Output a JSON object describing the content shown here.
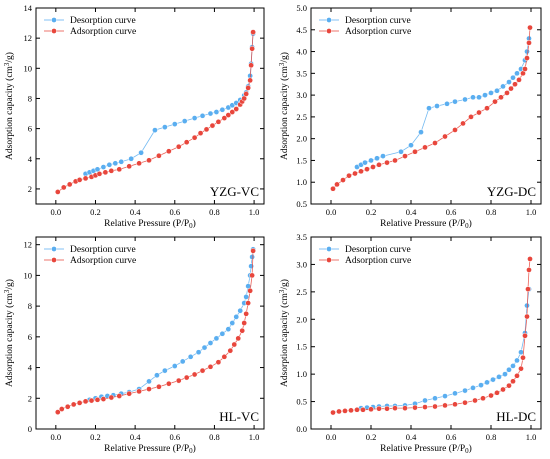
{
  "chart_data": [
    {
      "type": "scatter",
      "panel_label": "YZG-VC",
      "xlabel": "Relative Pressure (P/P",
      "xlabel_sub": "0",
      "xlabel_tail": ")",
      "ylabel": "Adsorption capacity (cm",
      "ylabel_sup": "3",
      "ylabel_tail": "/g)",
      "xlim": [
        -0.1,
        1.05
      ],
      "ylim": [
        1,
        14
      ],
      "xticks": [
        "0.0",
        "0.2",
        "0.4",
        "0.6",
        "0.8",
        "1.0"
      ],
      "xtick_values": [
        0.0,
        0.2,
        0.4,
        0.6,
        0.8,
        1.0
      ],
      "yticks": [
        "2",
        "4",
        "6",
        "8",
        "10",
        "12",
        "14"
      ],
      "ytick_values": [
        2,
        4,
        6,
        8,
        10,
        12,
        14
      ],
      "legend_position": "top-left",
      "series": [
        {
          "name": "Desorption curve",
          "color": "#5aaef0",
          "x": [
            0.15,
            0.17,
            0.19,
            0.21,
            0.24,
            0.27,
            0.3,
            0.33,
            0.38,
            0.43,
            0.5,
            0.55,
            0.6,
            0.65,
            0.7,
            0.74,
            0.78,
            0.81,
            0.84,
            0.87,
            0.89,
            0.91,
            0.93,
            0.95,
            0.96,
            0.97,
            0.98,
            0.985,
            0.99,
            0.995
          ],
          "y": [
            3.0,
            3.1,
            3.2,
            3.3,
            3.45,
            3.6,
            3.7,
            3.8,
            4.0,
            4.4,
            5.9,
            6.1,
            6.3,
            6.5,
            6.7,
            6.85,
            7.0,
            7.1,
            7.25,
            7.4,
            7.55,
            7.7,
            7.9,
            8.2,
            8.4,
            8.8,
            9.5,
            10.3,
            11.4,
            12.3
          ]
        },
        {
          "name": "Adsorption curve",
          "color": "#e8463c",
          "x": [
            0.01,
            0.04,
            0.07,
            0.1,
            0.12,
            0.15,
            0.18,
            0.2,
            0.22,
            0.25,
            0.28,
            0.32,
            0.37,
            0.42,
            0.47,
            0.52,
            0.57,
            0.62,
            0.66,
            0.7,
            0.73,
            0.76,
            0.79,
            0.82,
            0.85,
            0.87,
            0.89,
            0.91,
            0.93,
            0.94,
            0.95,
            0.96,
            0.97,
            0.98,
            0.985,
            0.99,
            0.995
          ],
          "y": [
            1.8,
            2.1,
            2.3,
            2.5,
            2.6,
            2.7,
            2.8,
            2.9,
            3.0,
            3.1,
            3.2,
            3.3,
            3.5,
            3.7,
            3.9,
            4.2,
            4.5,
            4.8,
            5.1,
            5.4,
            5.7,
            5.95,
            6.2,
            6.45,
            6.7,
            6.9,
            7.1,
            7.3,
            7.6,
            7.8,
            8.0,
            8.3,
            8.7,
            9.2,
            10.2,
            11.3,
            12.4
          ]
        }
      ]
    },
    {
      "type": "scatter",
      "panel_label": "YZG-DC",
      "xlabel": "Relative Pressure (P/P",
      "xlabel_sub": "0",
      "xlabel_tail": ")",
      "ylabel": "Adsorption capacity (cm",
      "ylabel_sup": "3",
      "ylabel_tail": "/g)",
      "xlim": [
        -0.1,
        1.05
      ],
      "ylim": [
        0.5,
        5.0
      ],
      "xticks": [
        "0.0",
        "0.2",
        "0.4",
        "0.6",
        "0.8",
        "1.0"
      ],
      "xtick_values": [
        0.0,
        0.2,
        0.4,
        0.6,
        0.8,
        1.0
      ],
      "yticks": [
        "0.5",
        "1.0",
        "1.5",
        "2.0",
        "2.5",
        "3.0",
        "3.5",
        "4.0",
        "4.5",
        "5.0"
      ],
      "ytick_values": [
        0.5,
        1.0,
        1.5,
        2.0,
        2.5,
        3.0,
        3.5,
        4.0,
        4.5,
        5.0
      ],
      "legend_position": "top-left",
      "series": [
        {
          "name": "Desorption curve",
          "color": "#5aaef0",
          "x": [
            0.13,
            0.15,
            0.17,
            0.2,
            0.23,
            0.26,
            0.35,
            0.4,
            0.45,
            0.49,
            0.53,
            0.58,
            0.62,
            0.67,
            0.71,
            0.74,
            0.77,
            0.8,
            0.83,
            0.86,
            0.89,
            0.91,
            0.93,
            0.95,
            0.97,
            0.98,
            0.99
          ],
          "y": [
            1.35,
            1.4,
            1.45,
            1.5,
            1.55,
            1.6,
            1.7,
            1.85,
            2.15,
            2.7,
            2.75,
            2.8,
            2.85,
            2.9,
            2.95,
            2.95,
            3.0,
            3.05,
            3.1,
            3.2,
            3.3,
            3.4,
            3.5,
            3.6,
            3.8,
            4.0,
            4.3
          ]
        },
        {
          "name": "Adsorption curve",
          "color": "#e8463c",
          "x": [
            0.01,
            0.03,
            0.06,
            0.09,
            0.12,
            0.15,
            0.18,
            0.21,
            0.24,
            0.28,
            0.32,
            0.37,
            0.42,
            0.47,
            0.52,
            0.57,
            0.62,
            0.66,
            0.7,
            0.74,
            0.78,
            0.82,
            0.85,
            0.88,
            0.9,
            0.92,
            0.94,
            0.96,
            0.97,
            0.98,
            0.99,
            0.995
          ],
          "y": [
            0.85,
            0.95,
            1.05,
            1.15,
            1.2,
            1.25,
            1.3,
            1.35,
            1.4,
            1.45,
            1.5,
            1.6,
            1.7,
            1.8,
            1.9,
            2.05,
            2.2,
            2.35,
            2.5,
            2.6,
            2.7,
            2.85,
            2.95,
            3.05,
            3.15,
            3.25,
            3.35,
            3.5,
            3.6,
            3.85,
            4.2,
            4.55
          ]
        }
      ]
    },
    {
      "type": "scatter",
      "panel_label": "HL-VC",
      "xlabel": "Relative Pressure (P/P",
      "xlabel_sub": "0",
      "xlabel_tail": ")",
      "ylabel": "Adsorption capacity (cm",
      "ylabel_sup": "3",
      "ylabel_tail": "/g)",
      "xlim": [
        -0.1,
        1.05
      ],
      "ylim": [
        0,
        12.5
      ],
      "xticks": [
        "0.0",
        "0.2",
        "0.4",
        "0.6",
        "0.8",
        "1.0"
      ],
      "xtick_values": [
        0.0,
        0.2,
        0.4,
        0.6,
        0.8,
        1.0
      ],
      "yticks": [
        "0",
        "2",
        "4",
        "6",
        "8",
        "10",
        "12"
      ],
      "ytick_values": [
        0,
        2,
        4,
        6,
        8,
        10,
        12
      ],
      "legend_position": "top-left",
      "series": [
        {
          "name": "Desorption curve",
          "color": "#5aaef0",
          "x": [
            0.17,
            0.2,
            0.23,
            0.26,
            0.29,
            0.33,
            0.37,
            0.42,
            0.47,
            0.51,
            0.55,
            0.6,
            0.64,
            0.68,
            0.72,
            0.75,
            0.78,
            0.81,
            0.84,
            0.87,
            0.89,
            0.91,
            0.93,
            0.95,
            0.96,
            0.97,
            0.98,
            0.985,
            0.99,
            0.995
          ],
          "y": [
            1.9,
            2.0,
            2.1,
            2.15,
            2.2,
            2.3,
            2.4,
            2.6,
            3.1,
            3.5,
            3.8,
            4.1,
            4.4,
            4.7,
            5.0,
            5.3,
            5.6,
            5.9,
            6.2,
            6.5,
            6.9,
            7.3,
            7.7,
            8.2,
            8.6,
            9.3,
            10.0,
            10.6,
            11.2,
            11.7
          ]
        },
        {
          "name": "Adsorption curve",
          "color": "#e8463c",
          "x": [
            0.01,
            0.03,
            0.06,
            0.09,
            0.12,
            0.15,
            0.18,
            0.21,
            0.24,
            0.28,
            0.32,
            0.37,
            0.42,
            0.47,
            0.52,
            0.57,
            0.62,
            0.66,
            0.7,
            0.74,
            0.78,
            0.82,
            0.85,
            0.88,
            0.9,
            0.92,
            0.94,
            0.95,
            0.96,
            0.97,
            0.98,
            0.99,
            0.995
          ],
          "y": [
            1.1,
            1.3,
            1.45,
            1.6,
            1.7,
            1.8,
            1.85,
            1.9,
            1.95,
            2.05,
            2.15,
            2.3,
            2.45,
            2.6,
            2.75,
            2.95,
            3.15,
            3.35,
            3.55,
            3.8,
            4.05,
            4.35,
            4.7,
            5.1,
            5.5,
            5.9,
            6.4,
            6.9,
            7.5,
            8.2,
            9.0,
            10.0,
            11.6
          ]
        }
      ]
    },
    {
      "type": "scatter",
      "panel_label": "HL-DC",
      "xlabel": "Relative Pressure (P/P",
      "xlabel_sub": "0",
      "xlabel_tail": ")",
      "ylabel": "Adsorption capacity (cm",
      "ylabel_sup": "3",
      "ylabel_tail": "/g)",
      "xlim": [
        -0.1,
        1.05
      ],
      "ylim": [
        0.0,
        3.5
      ],
      "xticks": [
        "0.0",
        "0.2",
        "0.4",
        "0.6",
        "0.8",
        "1.0"
      ],
      "xtick_values": [
        0.0,
        0.2,
        0.4,
        0.6,
        0.8,
        1.0
      ],
      "yticks": [
        "0.0",
        "0.5",
        "1.0",
        "1.5",
        "2.0",
        "2.5",
        "3.0",
        "3.5"
      ],
      "ytick_values": [
        0.0,
        0.5,
        1.0,
        1.5,
        2.0,
        2.5,
        3.0,
        3.5
      ],
      "legend_position": "top-left",
      "series": [
        {
          "name": "Desorption curve",
          "color": "#5aaef0",
          "x": [
            0.15,
            0.18,
            0.21,
            0.24,
            0.28,
            0.32,
            0.37,
            0.42,
            0.47,
            0.52,
            0.57,
            0.62,
            0.67,
            0.71,
            0.75,
            0.78,
            0.81,
            0.84,
            0.87,
            0.89,
            0.91,
            0.93,
            0.95,
            0.97,
            0.98,
            0.99
          ],
          "y": [
            0.38,
            0.39,
            0.4,
            0.41,
            0.42,
            0.42,
            0.43,
            0.46,
            0.52,
            0.56,
            0.6,
            0.65,
            0.7,
            0.75,
            0.8,
            0.85,
            0.9,
            0.95,
            1.0,
            1.08,
            1.15,
            1.25,
            1.4,
            1.75,
            2.25,
            2.55
          ]
        },
        {
          "name": "Adsorption curve",
          "color": "#e8463c",
          "x": [
            0.01,
            0.04,
            0.07,
            0.1,
            0.13,
            0.16,
            0.2,
            0.24,
            0.28,
            0.32,
            0.37,
            0.42,
            0.47,
            0.52,
            0.57,
            0.62,
            0.67,
            0.72,
            0.76,
            0.8,
            0.83,
            0.86,
            0.89,
            0.91,
            0.93,
            0.95,
            0.96,
            0.97,
            0.98,
            0.985,
            0.99,
            0.995
          ],
          "y": [
            0.3,
            0.32,
            0.33,
            0.34,
            0.35,
            0.35,
            0.36,
            0.37,
            0.37,
            0.38,
            0.38,
            0.39,
            0.4,
            0.41,
            0.43,
            0.45,
            0.48,
            0.52,
            0.56,
            0.61,
            0.66,
            0.72,
            0.79,
            0.87,
            0.97,
            1.1,
            1.3,
            1.7,
            2.05,
            2.55,
            2.9,
            3.1
          ]
        }
      ]
    }
  ]
}
